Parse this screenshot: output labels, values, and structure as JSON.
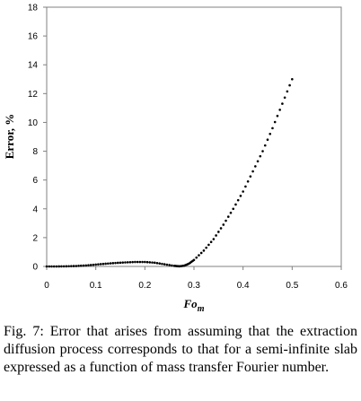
{
  "chart_data": {
    "type": "scatter",
    "xlabel": "Fo",
    "xlabel_sub": "m",
    "ylabel": "Error, %",
    "xlim": [
      0,
      0.6
    ],
    "ylim": [
      0,
      18
    ],
    "xticks": [
      "0",
      "0.1",
      "0.2",
      "0.3",
      "0.4",
      "0.5",
      "0.6"
    ],
    "yticks": [
      "0",
      "2",
      "4",
      "6",
      "8",
      "10",
      "12",
      "14",
      "16",
      "18"
    ],
    "grid": false,
    "marker_color": "#000000",
    "series": [
      {
        "x": [
          0,
          0.02,
          0.04,
          0.06,
          0.08,
          0.1,
          0.12,
          0.14,
          0.16,
          0.18,
          0.2,
          0.22,
          0.24,
          0.26,
          0.27,
          0.28,
          0.29,
          0.3,
          0.32,
          0.34,
          0.36,
          0.38,
          0.4,
          0.42,
          0.44,
          0.46,
          0.48,
          0.5
        ],
        "y": [
          0,
          0.0,
          0.01,
          0.03,
          0.07,
          0.13,
          0.19,
          0.24,
          0.28,
          0.31,
          0.31,
          0.26,
          0.15,
          0.04,
          0.01,
          0.05,
          0.2,
          0.45,
          1.1,
          1.9,
          2.9,
          4.0,
          5.2,
          6.6,
          8.0,
          9.6,
          11.3,
          13.0
        ]
      }
    ]
  },
  "caption": "Fig.  7:  Error  that  arises  from  assuming  that  the extraction  diffusion  process  corresponds  to  that  for  a semi-infinite  slab  expressed  as  a  function  of  mass transfer Fourier number."
}
